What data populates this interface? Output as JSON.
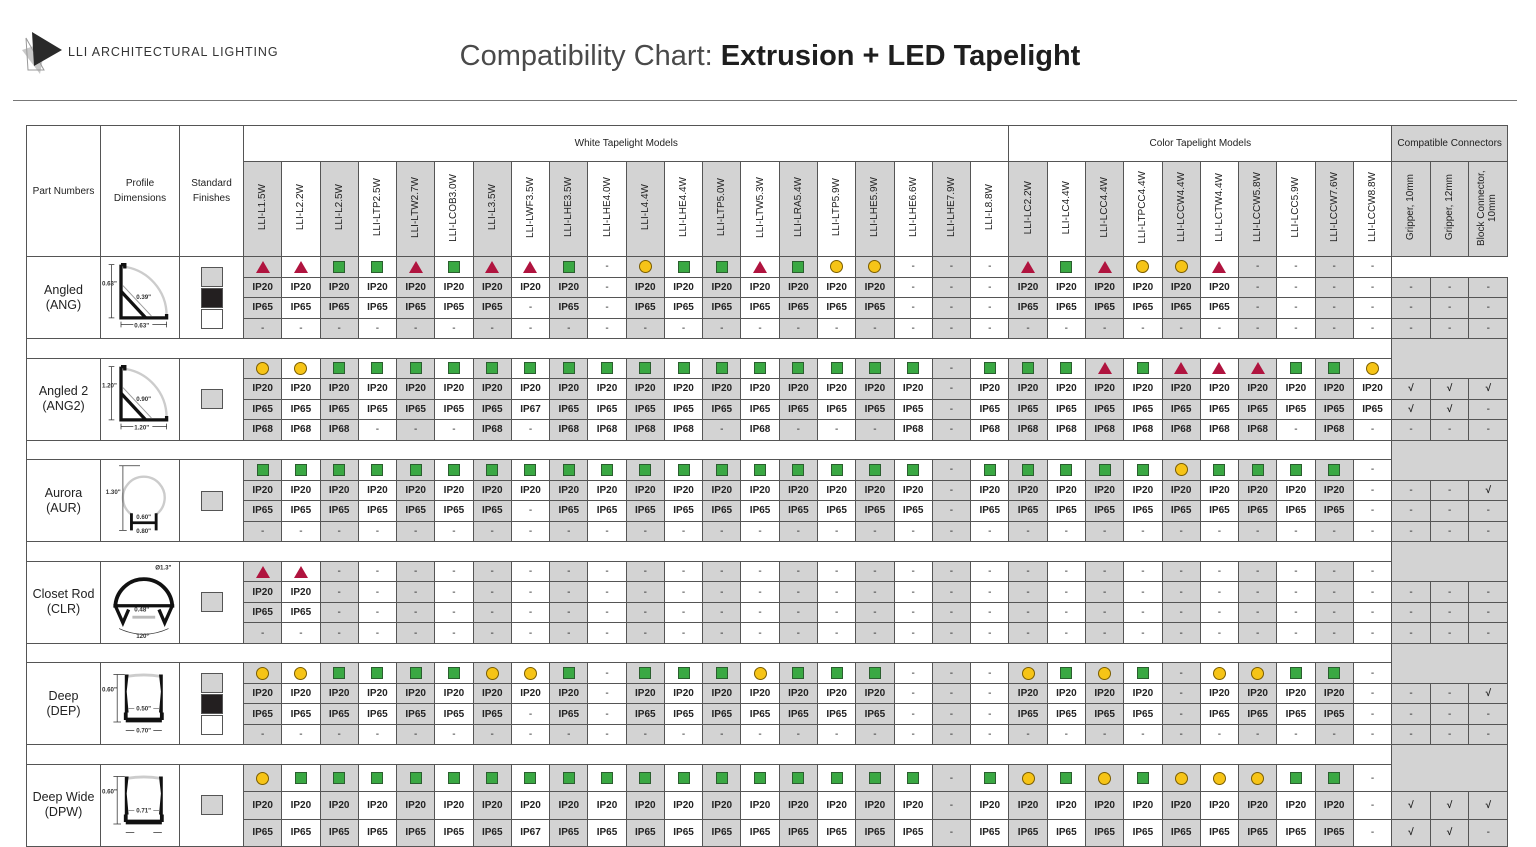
{
  "brand": {
    "name": "LLI ARCHITECTURAL LIGHTING"
  },
  "title": {
    "prefix": "Compatibility Chart: ",
    "main": "Extrusion + LED Tapelight"
  },
  "colors": {
    "triangle": "#b0143f",
    "square": "#3aa843",
    "circle": "#f6c417",
    "shaded_column": "#d3d3d3"
  },
  "headers": {
    "part_numbers": "Part Numbers",
    "profile_dimensions": "Profile Dimensions",
    "standard_finishes": "Standard Finishes",
    "white_group": "White Tapelight Models",
    "color_group": "Color Tapelight Models",
    "connectors_group": "Compatible Connectors",
    "white_models": [
      "LLI-L1.5W",
      "LLI-L2.2W",
      "LLI-L2.5W",
      "LLI-LTP2.5W",
      "LLI-LTW2.7W",
      "LLI-LCOB3.0W",
      "LLI-L3.5W",
      "LLI-LWF3.5W",
      "LLI-LHE3.5W",
      "LLI-LHE4.0W",
      "LLI-L4.4W",
      "LLI-LHE4.4W",
      "LLI-LTP5.0W",
      "LLI-LTW5.3W",
      "LLI-LRA5.4W",
      "LLI-LTP5.9W",
      "LLI-LHE5.9W",
      "LLI-LHE6.6W",
      "LLI-LHE7.9W",
      "LLI-L8.8W"
    ],
    "color_models": [
      "LLI-LC2.2W",
      "LLI-LC4.4W",
      "LLI-LCC4.4W",
      "LLI-LTPCC4.4W",
      "LLI-LCCW4.4W",
      "LLI-LCTW4.4W",
      "LLI-LCCW5.8W",
      "LLI-LCC5.9W",
      "LLI-LCCW7.6W",
      "LLI-LCCW8.8W"
    ],
    "connectors": [
      "Gripper, 10mm",
      "Gripper, 12mm",
      "Block Connector, 10mm"
    ]
  },
  "blocks": [
    {
      "name": "Angled",
      "code": "(ANG)",
      "profile_shape": "angled",
      "dims": [
        "0.63\"",
        "0.39\"",
        "0.63\""
      ],
      "finishes": [
        "silver",
        "black",
        "white"
      ],
      "symbols": [
        "T",
        "T",
        "S",
        "S",
        "T",
        "S",
        "T",
        "T",
        "S",
        "-",
        "C",
        "S",
        "S",
        "T",
        "S",
        "C",
        "C",
        "-",
        "-",
        "-",
        "T",
        "S",
        "T",
        "C",
        "C",
        "T",
        "-",
        "-",
        "-",
        "-"
      ],
      "rows": [
        [
          "IP20",
          "IP20",
          "IP20",
          "IP20",
          "IP20",
          "IP20",
          "IP20",
          "IP20",
          "IP20",
          "-",
          "IP20",
          "IP20",
          "IP20",
          "IP20",
          "IP20",
          "IP20",
          "IP20",
          "-",
          "-",
          "-",
          "IP20",
          "IP20",
          "IP20",
          "IP20",
          "IP20",
          "IP20",
          "-",
          "-",
          "-",
          "-"
        ],
        [
          "IP65",
          "IP65",
          "IP65",
          "IP65",
          "IP65",
          "IP65",
          "IP65",
          "-",
          "IP65",
          "-",
          "IP65",
          "IP65",
          "IP65",
          "IP65",
          "IP65",
          "IP65",
          "IP65",
          "-",
          "-",
          "-",
          "IP65",
          "IP65",
          "IP65",
          "IP65",
          "IP65",
          "IP65",
          "-",
          "-",
          "-",
          "-"
        ],
        [
          "-",
          "-",
          "-",
          "-",
          "-",
          "-",
          "-",
          "-",
          "-",
          "-",
          "-",
          "-",
          "-",
          "-",
          "-",
          "-",
          "-",
          "-",
          "-",
          "-",
          "-",
          "-",
          "-",
          "-",
          "-",
          "-",
          "-",
          "-",
          "-",
          "-"
        ]
      ],
      "connectors": [
        [
          "-",
          "-",
          "-"
        ],
        [
          "-",
          "-",
          "-"
        ],
        [
          "-",
          "-",
          "-"
        ]
      ]
    },
    {
      "name": "Angled 2",
      "code": "(ANG2)",
      "profile_shape": "angled",
      "dims": [
        "1.20\"",
        "0.90\"",
        "1.20\""
      ],
      "finishes": [
        "silver"
      ],
      "symbols": [
        "C",
        "C",
        "S",
        "S",
        "S",
        "S",
        "S",
        "S",
        "S",
        "S",
        "S",
        "S",
        "S",
        "S",
        "S",
        "S",
        "S",
        "S",
        "-",
        "S",
        "S",
        "S",
        "T",
        "S",
        "T",
        "T",
        "T",
        "S",
        "S",
        "C"
      ],
      "rows": [
        [
          "IP20",
          "IP20",
          "IP20",
          "IP20",
          "IP20",
          "IP20",
          "IP20",
          "IP20",
          "IP20",
          "IP20",
          "IP20",
          "IP20",
          "IP20",
          "IP20",
          "IP20",
          "IP20",
          "IP20",
          "IP20",
          "-",
          "IP20",
          "IP20",
          "IP20",
          "IP20",
          "IP20",
          "IP20",
          "IP20",
          "IP20",
          "IP20",
          "IP20",
          "IP20"
        ],
        [
          "IP65",
          "IP65",
          "IP65",
          "IP65",
          "IP65",
          "IP65",
          "IP65",
          "IP67",
          "IP65",
          "IP65",
          "IP65",
          "IP65",
          "IP65",
          "IP65",
          "IP65",
          "IP65",
          "IP65",
          "IP65",
          "-",
          "IP65",
          "IP65",
          "IP65",
          "IP65",
          "IP65",
          "IP65",
          "IP65",
          "IP65",
          "IP65",
          "IP65",
          "IP65"
        ],
        [
          "IP68",
          "IP68",
          "IP68",
          "-",
          "-",
          "-",
          "IP68",
          "-",
          "IP68",
          "IP68",
          "IP68",
          "IP68",
          "-",
          "IP68",
          "-",
          "-",
          "-",
          "IP68",
          "-",
          "IP68",
          "IP68",
          "IP68",
          "IP68",
          "IP68",
          "IP68",
          "IP68",
          "IP68",
          "-",
          "IP68",
          "-"
        ]
      ],
      "connectors": [
        [
          "√",
          "√",
          "√"
        ],
        [
          "√",
          "√",
          "-"
        ],
        [
          "-",
          "-",
          "-"
        ]
      ]
    },
    {
      "name": "Aurora",
      "code": "(AUR)",
      "profile_shape": "round",
      "dims": [
        "1.30\"",
        "0.60\"",
        "0.80\""
      ],
      "finishes": [
        "silver"
      ],
      "symbols": [
        "S",
        "S",
        "S",
        "S",
        "S",
        "S",
        "S",
        "S",
        "S",
        "S",
        "S",
        "S",
        "S",
        "S",
        "S",
        "S",
        "S",
        "S",
        "-",
        "S",
        "S",
        "S",
        "S",
        "S",
        "C",
        "S",
        "S",
        "S",
        "S",
        "-"
      ],
      "rows": [
        [
          "IP20",
          "IP20",
          "IP20",
          "IP20",
          "IP20",
          "IP20",
          "IP20",
          "IP20",
          "IP20",
          "IP20",
          "IP20",
          "IP20",
          "IP20",
          "IP20",
          "IP20",
          "IP20",
          "IP20",
          "IP20",
          "-",
          "IP20",
          "IP20",
          "IP20",
          "IP20",
          "IP20",
          "IP20",
          "IP20",
          "IP20",
          "IP20",
          "IP20",
          "-"
        ],
        [
          "IP65",
          "IP65",
          "IP65",
          "IP65",
          "IP65",
          "IP65",
          "IP65",
          "-",
          "IP65",
          "IP65",
          "IP65",
          "IP65",
          "IP65",
          "IP65",
          "IP65",
          "IP65",
          "IP65",
          "IP65",
          "-",
          "IP65",
          "IP65",
          "IP65",
          "IP65",
          "IP65",
          "IP65",
          "IP65",
          "IP65",
          "IP65",
          "IP65",
          "-"
        ],
        [
          "-",
          "-",
          "-",
          "-",
          "-",
          "-",
          "-",
          "-",
          "-",
          "-",
          "-",
          "-",
          "-",
          "-",
          "-",
          "-",
          "-",
          "-",
          "-",
          "-",
          "-",
          "-",
          "-",
          "-",
          "-",
          "-",
          "-",
          "-",
          "-",
          "-"
        ]
      ],
      "connectors": [
        [
          "-",
          "-",
          "√"
        ],
        [
          "-",
          "-",
          "-"
        ],
        [
          "-",
          "-",
          "-"
        ]
      ]
    },
    {
      "name": "Closet Rod",
      "code": "(CLR)",
      "profile_shape": "closet",
      "dims": [
        "Ø1.3\"",
        "0.48\"",
        "120°"
      ],
      "finishes": [
        "silver"
      ],
      "symbols": [
        "T",
        "T",
        "-",
        "-",
        "-",
        "-",
        "-",
        "-",
        "-",
        "-",
        "-",
        "-",
        "-",
        "-",
        "-",
        "-",
        "-",
        "-",
        "-",
        "-",
        "-",
        "-",
        "-",
        "-",
        "-",
        "-",
        "-",
        "-",
        "-",
        "-"
      ],
      "rows": [
        [
          "IP20",
          "IP20",
          "-",
          "-",
          "-",
          "-",
          "-",
          "-",
          "-",
          "-",
          "-",
          "-",
          "-",
          "-",
          "-",
          "-",
          "-",
          "-",
          "-",
          "-",
          "-",
          "-",
          "-",
          "-",
          "-",
          "-",
          "-",
          "-",
          "-",
          "-"
        ],
        [
          "IP65",
          "IP65",
          "-",
          "-",
          "-",
          "-",
          "-",
          "-",
          "-",
          "-",
          "-",
          "-",
          "-",
          "-",
          "-",
          "-",
          "-",
          "-",
          "-",
          "-",
          "-",
          "-",
          "-",
          "-",
          "-",
          "-",
          "-",
          "-",
          "-",
          "-"
        ],
        [
          "-",
          "-",
          "-",
          "-",
          "-",
          "-",
          "-",
          "-",
          "-",
          "-",
          "-",
          "-",
          "-",
          "-",
          "-",
          "-",
          "-",
          "-",
          "-",
          "-",
          "-",
          "-",
          "-",
          "-",
          "-",
          "-",
          "-",
          "-",
          "-",
          "-"
        ]
      ],
      "connectors": [
        [
          "-",
          "-",
          "-"
        ],
        [
          "-",
          "-",
          "-"
        ],
        [
          "-",
          "-",
          "-"
        ]
      ]
    },
    {
      "name": "Deep",
      "code": "(DEP)",
      "profile_shape": "channel",
      "dims": [
        "0.60\"",
        "0.50\"",
        "0.70\""
      ],
      "finishes": [
        "silver",
        "black",
        "white"
      ],
      "symbols": [
        "C",
        "C",
        "S",
        "S",
        "S",
        "S",
        "C",
        "C",
        "S",
        "-",
        "S",
        "S",
        "S",
        "C",
        "S",
        "S",
        "S",
        "-",
        "-",
        "-",
        "C",
        "S",
        "C",
        "S",
        "-",
        "C",
        "C",
        "S",
        "S",
        "-"
      ],
      "rows": [
        [
          "IP20",
          "IP20",
          "IP20",
          "IP20",
          "IP20",
          "IP20",
          "IP20",
          "IP20",
          "IP20",
          "-",
          "IP20",
          "IP20",
          "IP20",
          "IP20",
          "IP20",
          "IP20",
          "IP20",
          "-",
          "-",
          "-",
          "IP20",
          "IP20",
          "IP20",
          "IP20",
          "-",
          "IP20",
          "IP20",
          "IP20",
          "IP20",
          "-"
        ],
        [
          "IP65",
          "IP65",
          "IP65",
          "IP65",
          "IP65",
          "IP65",
          "IP65",
          "-",
          "IP65",
          "-",
          "IP65",
          "IP65",
          "IP65",
          "IP65",
          "IP65",
          "IP65",
          "IP65",
          "-",
          "-",
          "-",
          "IP65",
          "IP65",
          "IP65",
          "IP65",
          "-",
          "IP65",
          "IP65",
          "IP65",
          "IP65",
          "-"
        ],
        [
          "-",
          "-",
          "-",
          "-",
          "-",
          "-",
          "-",
          "-",
          "-",
          "-",
          "-",
          "-",
          "-",
          "-",
          "-",
          "-",
          "-",
          "-",
          "-",
          "-",
          "-",
          "-",
          "-",
          "-",
          "-",
          "-",
          "-",
          "-",
          "-",
          "-"
        ]
      ],
      "connectors": [
        [
          "-",
          "-",
          "√"
        ],
        [
          "-",
          "-",
          "-"
        ],
        [
          "-",
          "-",
          "-"
        ]
      ]
    },
    {
      "name": "Deep Wide",
      "code": "(DPW)",
      "profile_shape": "channel",
      "dims": [
        "0.60\"",
        "0.71\"",
        ""
      ],
      "finishes": [
        "silver"
      ],
      "symbols": [
        "C",
        "S",
        "S",
        "S",
        "S",
        "S",
        "S",
        "S",
        "S",
        "S",
        "S",
        "S",
        "S",
        "S",
        "S",
        "S",
        "S",
        "S",
        "-",
        "S",
        "C",
        "S",
        "C",
        "S",
        "C",
        "C",
        "C",
        "S",
        "S",
        "-"
      ],
      "rows": [
        [
          "IP20",
          "IP20",
          "IP20",
          "IP20",
          "IP20",
          "IP20",
          "IP20",
          "IP20",
          "IP20",
          "IP20",
          "IP20",
          "IP20",
          "IP20",
          "IP20",
          "IP20",
          "IP20",
          "IP20",
          "IP20",
          "-",
          "IP20",
          "IP20",
          "IP20",
          "IP20",
          "IP20",
          "IP20",
          "IP20",
          "IP20",
          "IP20",
          "IP20",
          "-"
        ],
        [
          "IP65",
          "IP65",
          "IP65",
          "IP65",
          "IP65",
          "IP65",
          "IP65",
          "IP67",
          "IP65",
          "IP65",
          "IP65",
          "IP65",
          "IP65",
          "IP65",
          "IP65",
          "IP65",
          "IP65",
          "IP65",
          "-",
          "IP65",
          "IP65",
          "IP65",
          "IP65",
          "IP65",
          "IP65",
          "IP65",
          "IP65",
          "IP65",
          "IP65",
          "-"
        ]
      ],
      "connectors": [
        [
          "√",
          "√",
          "√"
        ],
        [
          "√",
          "√",
          "-"
        ]
      ]
    }
  ]
}
